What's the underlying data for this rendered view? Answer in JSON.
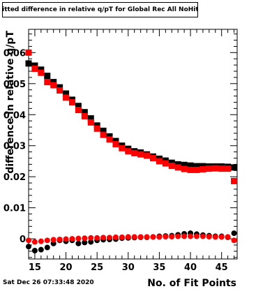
{
  "chart_data": {
    "type": "scatter",
    "title": "Fitted difference in relative q/pT  for Global Rec All NoHits",
    "xlabel": "No. of Fit Points",
    "ylabel": "difference in relative q/pT",
    "xlim": [
      14,
      47.5
    ],
    "ylim": [
      -0.0065,
      0.0675
    ],
    "x_ticks": [
      15,
      20,
      25,
      30,
      35,
      40,
      45
    ],
    "y_ticks": [
      0,
      0.01,
      0.02,
      0.03,
      0.04,
      0.05,
      0.06
    ],
    "y_tick_labels": [
      "0",
      "0.01",
      "0.02",
      "0.03",
      "0.04",
      "0.05",
      "0.06"
    ],
    "x_tick_labels": [
      "15",
      "20",
      "25",
      "30",
      "35",
      "40",
      "45"
    ],
    "grid": false,
    "series": [
      {
        "color": "#000000",
        "marker": "square",
        "x": [
          14,
          15,
          16,
          17,
          18,
          19,
          20,
          21,
          22,
          23,
          24,
          25,
          26,
          27,
          28,
          29,
          30,
          31,
          32,
          33,
          34,
          35,
          36,
          37,
          38,
          39,
          40,
          41,
          42,
          43,
          44,
          45,
          46,
          47
        ],
        "y": [
          0.0565,
          0.0558,
          0.0545,
          0.0525,
          0.0505,
          0.0488,
          0.0468,
          0.0448,
          0.0428,
          0.0408,
          0.0388,
          0.0365,
          0.0348,
          0.033,
          0.0315,
          0.03,
          0.029,
          0.0282,
          0.0278,
          0.0272,
          0.0265,
          0.0258,
          0.0252,
          0.0245,
          0.024,
          0.0238,
          0.0236,
          0.0234,
          0.0234,
          0.0233,
          0.0233,
          0.0233,
          0.0232,
          0.023
        ]
      },
      {
        "color": "#ff0000",
        "marker": "square",
        "x": [
          14,
          15,
          16,
          17,
          18,
          19,
          20,
          21,
          22,
          23,
          24,
          25,
          26,
          27,
          28,
          29,
          30,
          31,
          32,
          33,
          34,
          35,
          36,
          37,
          38,
          39,
          40,
          41,
          42,
          43,
          44,
          45,
          46,
          47
        ],
        "y": [
          0.06,
          0.0548,
          0.0535,
          0.0505,
          0.0495,
          0.0478,
          0.0455,
          0.044,
          0.0415,
          0.0395,
          0.0375,
          0.0355,
          0.0335,
          0.032,
          0.0305,
          0.0292,
          0.0282,
          0.0276,
          0.0272,
          0.0268,
          0.026,
          0.025,
          0.0243,
          0.0235,
          0.023,
          0.0225,
          0.0222,
          0.0222,
          0.0224,
          0.0226,
          0.0227,
          0.0226,
          0.0226,
          0.0186
        ]
      },
      {
        "color": "#000000",
        "marker": "circle",
        "x": [
          14,
          15,
          16,
          17,
          18,
          19,
          20,
          21,
          22,
          23,
          24,
          25,
          26,
          27,
          28,
          29,
          30,
          31,
          32,
          33,
          34,
          35,
          36,
          37,
          38,
          39,
          40,
          41,
          42,
          43,
          44,
          45,
          46,
          47
        ],
        "y": [
          -0.0025,
          -0.0038,
          -0.0035,
          -0.0028,
          -0.0015,
          -0.0005,
          -0.0008,
          -0.0005,
          -0.0015,
          -0.0012,
          -0.001,
          -0.0005,
          -0.0003,
          -0.0002,
          -0.0001,
          0.0002,
          0.0003,
          0.0004,
          0.0005,
          0.0005,
          0.0006,
          0.0008,
          0.0009,
          0.001,
          0.0013,
          0.0016,
          0.0018,
          0.0015,
          0.0012,
          0.001,
          0.0008,
          0.0008,
          0.0005,
          0.0018
        ]
      },
      {
        "color": "#ff0000",
        "marker": "circle",
        "x": [
          14,
          15,
          16,
          17,
          18,
          19,
          20,
          21,
          22,
          23,
          24,
          25,
          26,
          27,
          28,
          29,
          30,
          31,
          32,
          33,
          34,
          35,
          36,
          37,
          38,
          39,
          40,
          41,
          42,
          43,
          44,
          45,
          46,
          47
        ],
        "y": [
          -0.0005,
          -0.001,
          -0.0008,
          -0.0005,
          -0.0003,
          -0.0002,
          -0.0001,
          0.0,
          0.0001,
          0.0002,
          0.0003,
          0.0003,
          0.0004,
          0.0004,
          0.0005,
          0.0005,
          0.0006,
          0.0006,
          0.0006,
          0.0006,
          0.0006,
          0.0006,
          0.0007,
          0.0007,
          0.0008,
          0.0008,
          0.0008,
          0.0008,
          0.0008,
          0.0007,
          0.0006,
          0.0006,
          0.0006,
          -0.0005
        ]
      }
    ]
  },
  "footer": {
    "date_stamp": "Sat Dec 26 07:33:48 2020"
  }
}
